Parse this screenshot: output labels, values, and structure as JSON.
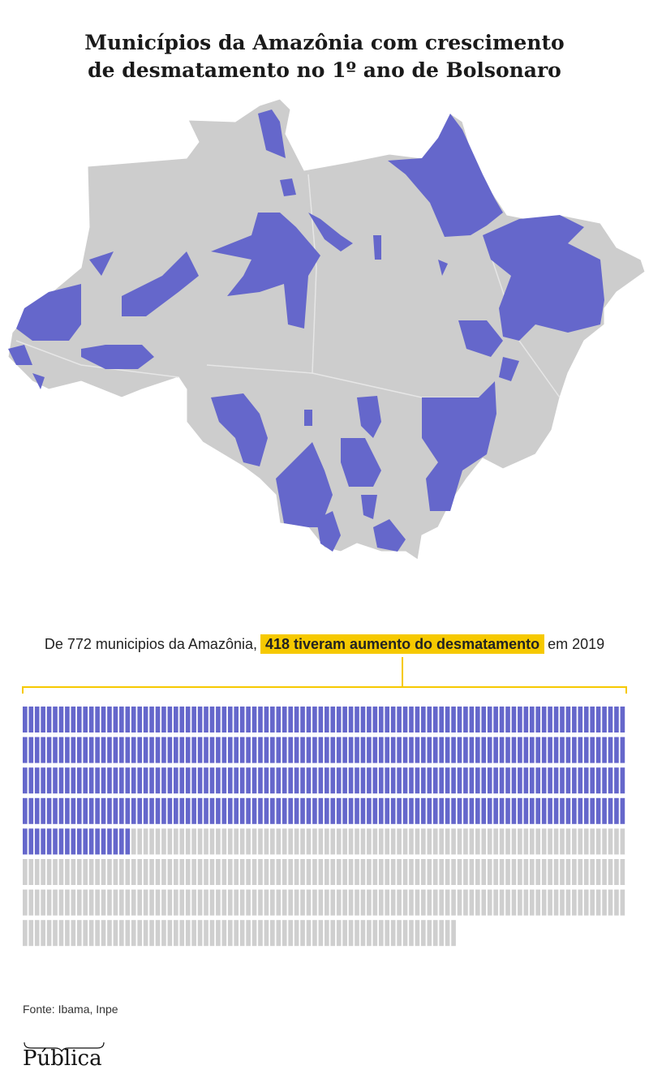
{
  "chart_data": {
    "type": "waffle",
    "title": [
      "Municípios da Amazônia com crescimento",
      "de desmatamento no 1º ano de Bolsonaro"
    ],
    "annotation": {
      "before": "De 772 municipios da Amazônia,",
      "highlight": "418 tiveram aumento do desmatamento",
      "after": "em 2019"
    },
    "total": 772,
    "value": 418,
    "color": "#6567cb",
    "base_color": "#cfcfcf",
    "accent_color": "#f6c900",
    "source": "Fonte: Ibama, Inpe",
    "logo": "Pública"
  }
}
